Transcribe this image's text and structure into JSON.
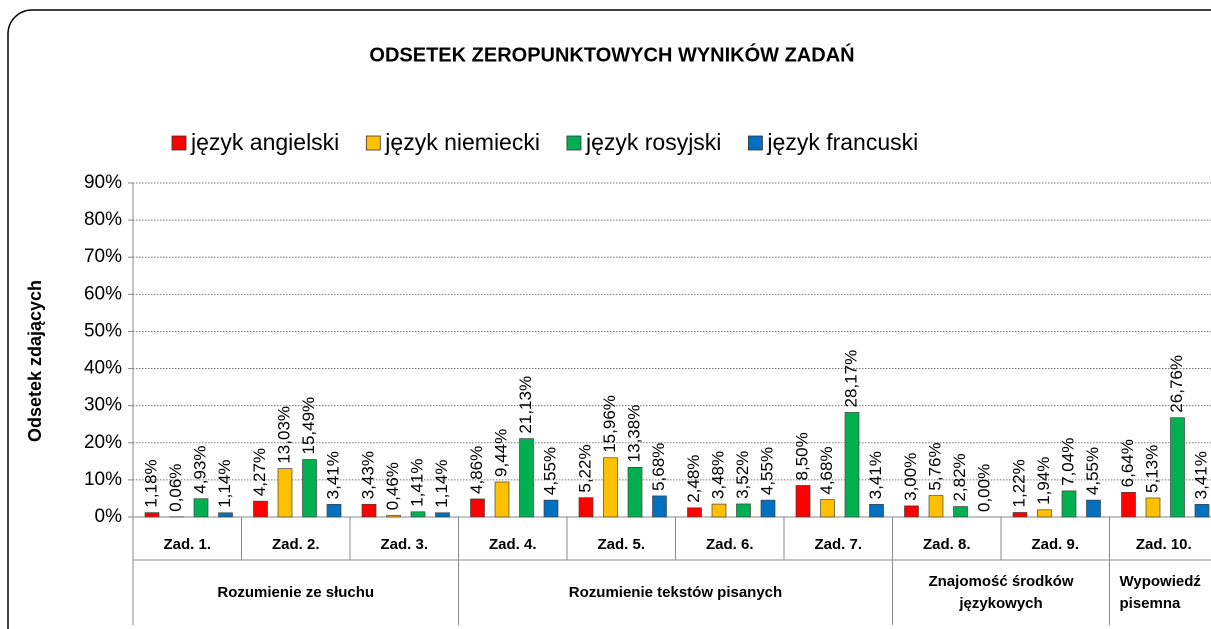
{
  "chart_data": {
    "type": "bar",
    "title": "ODSETEK ZEROPUNKTOWYCH WYNIKÓW ZADAŃ",
    "y_label": "Odsetek zdających",
    "groups": [
      {
        "label": "Rozumienie ze słuchu",
        "categories": [
          "Zad. 1.",
          "Zad. 2.",
          "Zad. 3."
        ]
      },
      {
        "label": "Rozumienie tekstów pisanych",
        "categories": [
          "Zad. 4.",
          "Zad. 5.",
          "Zad. 6.",
          "Zad. 7."
        ]
      },
      {
        "label": "Znajomość środków językowych",
        "categories": [
          "Zad. 8.",
          "Zad. 9."
        ]
      },
      {
        "label": "Wypowiedź pisemna",
        "categories": [
          "Zad. 10."
        ]
      }
    ],
    "series": [
      {
        "name": "język angielski",
        "color": "#ff0000",
        "values": [
          1.18,
          4.27,
          3.43,
          4.86,
          5.22,
          2.48,
          8.5,
          3.0,
          1.22,
          6.64
        ],
        "value_labels": [
          "1,18%",
          "4,27%",
          "3,43%",
          "4,86%",
          "5,22%",
          "2,48%",
          "8,50%",
          "3,00%",
          "1,22%",
          "6,64%"
        ]
      },
      {
        "name": "język niemiecki",
        "color": "#ffc000",
        "values": [
          0.06,
          13.03,
          0.46,
          9.44,
          15.96,
          3.48,
          4.68,
          5.76,
          1.94,
          5.13
        ],
        "value_labels": [
          "0,06%",
          "13,03%",
          "0,46%",
          "9,44%",
          "15,96%",
          "3,48%",
          "4,68%",
          "5,76%",
          "1,94%",
          "5,13%"
        ]
      },
      {
        "name": "język rosyjski",
        "color": "#00b050",
        "values": [
          4.93,
          15.49,
          1.41,
          21.13,
          13.38,
          3.52,
          28.17,
          2.82,
          7.04,
          26.76
        ],
        "value_labels": [
          "4,93%",
          "15,49%",
          "1,41%",
          "21,13%",
          "13,38%",
          "3,52%",
          "28,17%",
          "2,82%",
          "7,04%",
          "26,76%"
        ]
      },
      {
        "name": "język francuski",
        "color": "#0070c0",
        "values": [
          1.14,
          3.41,
          1.14,
          4.55,
          5.68,
          4.55,
          3.41,
          0.0,
          4.55,
          3.41
        ],
        "value_labels": [
          "1,14%",
          "3,41%",
          "1,14%",
          "4,55%",
          "5,68%",
          "4,55%",
          "3,41%",
          "0,00%",
          "4,55%",
          "3,41%"
        ]
      }
    ],
    "ylim": [
      0,
      90
    ],
    "yticks": [
      {
        "value": 0,
        "label": "0%"
      },
      {
        "value": 10,
        "label": "10%"
      },
      {
        "value": 20,
        "label": "20%"
      },
      {
        "value": 30,
        "label": "30%"
      },
      {
        "value": 40,
        "label": "40%"
      },
      {
        "value": 50,
        "label": "50%"
      },
      {
        "value": 60,
        "label": "60%"
      },
      {
        "value": 70,
        "label": "70%"
      },
      {
        "value": 80,
        "label": "80%"
      },
      {
        "value": 90,
        "label": "90%"
      }
    ],
    "grid": true
  }
}
